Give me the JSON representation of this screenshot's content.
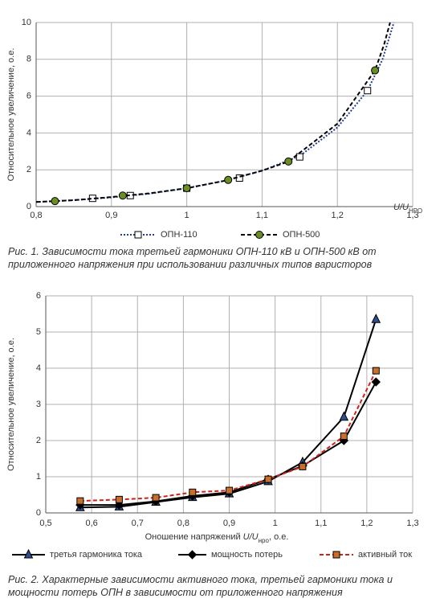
{
  "chart_data": [
    {
      "type": "line",
      "ylabel": "Относительное увеличение, о.е.",
      "xlabel": [
        {
          "text": "U/U",
          "italic": true
        },
        {
          "text": "НРО",
          "sub": true
        }
      ],
      "xlim": [
        0.8,
        1.3
      ],
      "xticks": [
        {
          "value": 0.8,
          "label": "0,8"
        },
        {
          "value": 0.9,
          "label": "0,9"
        },
        1,
        {
          "value": 1.1,
          "label": "1,1"
        },
        {
          "value": 1.2,
          "label": "1,2"
        },
        {
          "value": 1.3,
          "label": "1,3"
        }
      ],
      "ylim": [
        0,
        10
      ],
      "yticks": [
        0,
        2,
        4,
        6,
        8,
        10
      ],
      "grid": true,
      "series": [
        {
          "name": "ОПН-110",
          "color": "#1f3f8f",
          "dash": "dotted",
          "marker": "square",
          "marker_color": "#ffffff",
          "x": [
            0.8,
            0.85,
            0.9,
            0.95,
            1.0,
            1.05,
            1.1,
            1.15,
            1.2,
            1.24,
            1.26,
            1.275
          ],
          "values": [
            0.25,
            0.35,
            0.5,
            0.7,
            1.0,
            1.4,
            1.95,
            2.75,
            4.3,
            6.3,
            8,
            10
          ],
          "marker_x": [
            0.875,
            0.925,
            1.0,
            1.07,
            1.15,
            1.24
          ],
          "marker_values": [
            0.45,
            0.6,
            1.0,
            1.55,
            2.7,
            6.3
          ]
        },
        {
          "name": "ОПН-500",
          "color": "#000000",
          "dash": "dashed",
          "marker": "circle",
          "marker_color": "#6b8e23",
          "x": [
            0.8,
            0.85,
            0.9,
            0.95,
            1.0,
            1.05,
            1.1,
            1.135,
            1.2,
            1.25,
            1.262,
            1.27
          ],
          "values": [
            0.25,
            0.35,
            0.52,
            0.72,
            1.0,
            1.4,
            1.95,
            2.45,
            4.5,
            7.4,
            8.8,
            10
          ],
          "marker_x": [
            0.825,
            0.915,
            1.0,
            1.055,
            1.135,
            1.25
          ],
          "marker_values": [
            0.3,
            0.6,
            1.0,
            1.45,
            2.45,
            7.4
          ]
        }
      ],
      "caption": "Рис. 1. Зависимости тока третьей гармоники ОПН-110 кВ и ОПН-500 кВ от приложенного напряжения при использовании различных типов варисторов"
    },
    {
      "type": "line",
      "ylabel": "Относительное увеличение, о.е.",
      "xlabel": [
        {
          "text": "Оношение напряжений "
        },
        {
          "text": "U/U",
          "italic": true
        },
        {
          "text": "нро",
          "sub": true
        },
        {
          "text": ", о.е."
        }
      ],
      "xlim": [
        0.5,
        1.3
      ],
      "xticks": [
        {
          "value": 0.5,
          "label": "0,5"
        },
        {
          "value": 0.6,
          "label": "0,6"
        },
        {
          "value": 0.7,
          "label": "0,7"
        },
        {
          "value": 0.8,
          "label": "0,8"
        },
        {
          "value": 0.9,
          "label": "0,9"
        },
        1,
        {
          "value": 1.1,
          "label": "1,1"
        },
        {
          "value": 1.2,
          "label": "1,2"
        },
        {
          "value": 1.3,
          "label": "1,3"
        }
      ],
      "ylim": [
        0,
        6
      ],
      "yticks": [
        0,
        1,
        2,
        3,
        4,
        5,
        6
      ],
      "grid": true,
      "series": [
        {
          "name": "третья гармоника тока",
          "color": "#000000",
          "dash": "solid",
          "marker": "triangle",
          "marker_color": "#2e4f8f",
          "x": [
            0.575,
            0.66,
            0.74,
            0.82,
            0.9,
            0.985,
            1.06,
            1.15,
            1.22
          ],
          "values": [
            0.15,
            0.17,
            0.3,
            0.43,
            0.53,
            0.87,
            1.4,
            2.65,
            5.35
          ]
        },
        {
          "name": "мощность потерь",
          "color": "#000000",
          "dash": "solid",
          "marker": "diamond",
          "marker_color": "#000000",
          "x": [
            0.575,
            0.66,
            0.74,
            0.82,
            0.9,
            0.985,
            1.06,
            1.15,
            1.22
          ],
          "values": [
            0.22,
            0.22,
            0.32,
            0.47,
            0.57,
            0.93,
            1.3,
            2.0,
            3.62
          ]
        },
        {
          "name": "активный ток",
          "color": "#d0201a",
          "dash": "dashed",
          "marker": "square",
          "marker_color": "#c8702a",
          "x": [
            0.575,
            0.66,
            0.74,
            0.82,
            0.9,
            0.985,
            1.06,
            1.15,
            1.22
          ],
          "values": [
            0.33,
            0.37,
            0.42,
            0.57,
            0.62,
            0.93,
            1.28,
            2.12,
            3.93
          ]
        }
      ],
      "caption": "Рис. 2. Характерные зависимости активного тока, третьей гармоники тока и мощности потерь ОПН в зависимости от приложенного напряжения"
    }
  ]
}
